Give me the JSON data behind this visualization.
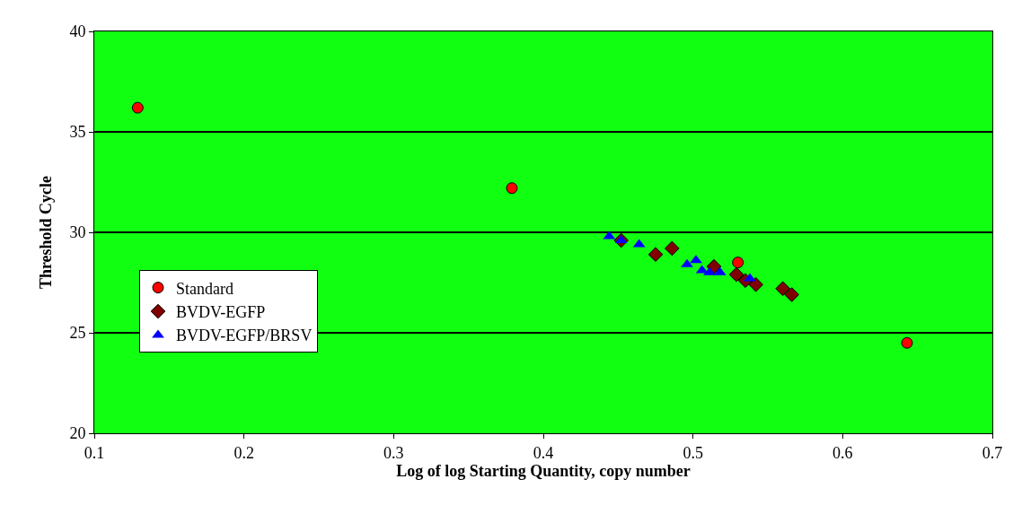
{
  "chart_data": {
    "type": "scatter",
    "xlabel": "Log of log Starting Quantity, copy number",
    "ylabel": "Threshold Cycle",
    "xlim": [
      0.1,
      0.7
    ],
    "xticks": [
      0.1,
      0.2,
      0.3,
      0.4,
      0.5,
      0.6,
      0.7
    ],
    "ylim": [
      20,
      40
    ],
    "yticks": [
      20,
      25,
      30,
      35,
      40
    ],
    "grid": "y",
    "legend": "bottom left",
    "series": [
      {
        "name": "Standard",
        "color": "#ff0000",
        "marker": "circle",
        "x": [
          0.129,
          0.379,
          0.53,
          0.643
        ],
        "values": [
          36.2,
          32.2,
          28.5,
          24.5
        ]
      },
      {
        "name": "BVDV-EGFP",
        "color": "#800000",
        "marker": "diamond",
        "x": [
          0.452,
          0.475,
          0.486,
          0.514,
          0.529,
          0.535,
          0.542,
          0.56,
          0.566
        ],
        "values": [
          29.6,
          28.9,
          29.2,
          28.3,
          27.9,
          27.6,
          27.4,
          27.2,
          26.9
        ]
      },
      {
        "name": "BVDV-EGFP/BRSV",
        "color": "#0000ff",
        "marker": "triangle",
        "x": [
          0.444,
          0.452,
          0.464,
          0.496,
          0.502,
          0.506,
          0.511,
          0.518,
          0.538
        ],
        "values": [
          29.8,
          29.6,
          29.4,
          28.4,
          28.6,
          28.1,
          28.0,
          28.0,
          27.7
        ]
      }
    ]
  }
}
